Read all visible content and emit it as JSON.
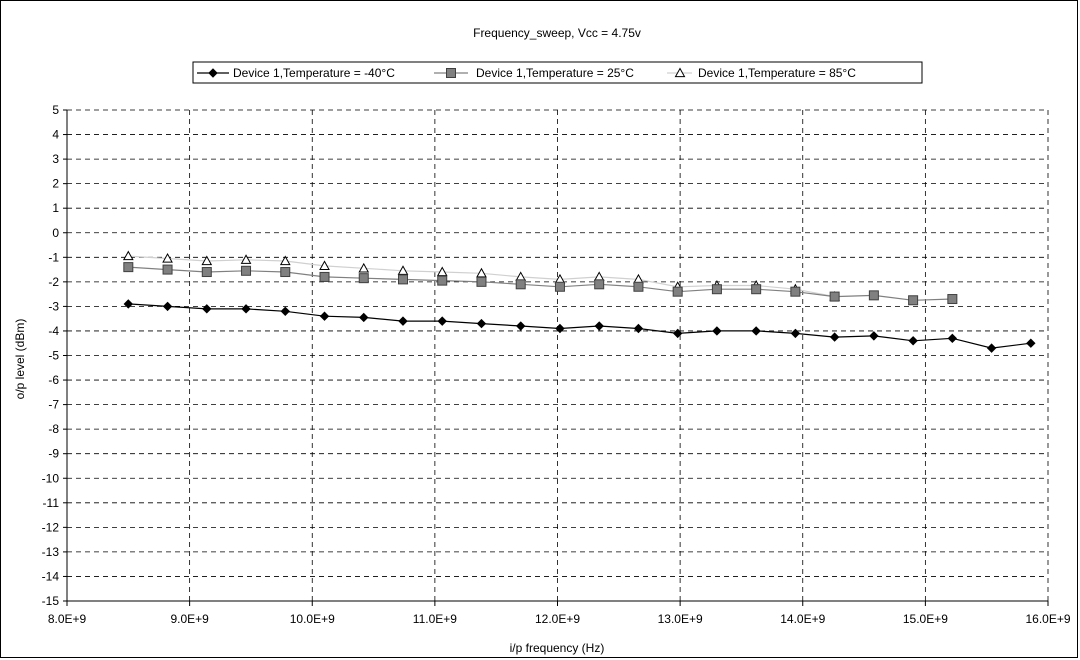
{
  "chart_data": {
    "type": "line",
    "title": "Frequency_sweep, Vcc = 4.75v",
    "xlabel": "i/p frequency (Hz)",
    "ylabel": "o/p level (dBm)",
    "xlim": [
      8000000000.0,
      16000000000.0
    ],
    "ylim": [
      -15,
      5
    ],
    "x_ticks": [
      8000000000.0,
      9000000000.0,
      10000000000.0,
      11000000000.0,
      12000000000.0,
      13000000000.0,
      14000000000.0,
      15000000000.0,
      16000000000.0
    ],
    "x_tick_labels": [
      "8.0E+9",
      "9.0E+9",
      "10.0E+9",
      "11.0E+9",
      "12.0E+9",
      "13.0E+9",
      "14.0E+9",
      "15.0E+9",
      "16.0E+9"
    ],
    "y_ticks": [
      5,
      4,
      3,
      2,
      1,
      0,
      -1,
      -2,
      -3,
      -4,
      -5,
      -6,
      -7,
      -8,
      -9,
      -10,
      -11,
      -12,
      -13,
      -14,
      -15
    ],
    "y_tick_labels": [
      "5",
      "4",
      "3",
      "2",
      "1",
      "0",
      "-1",
      "-2",
      "-3",
      "-4",
      "-5",
      "-6",
      "-7",
      "-8",
      "-9",
      "-10",
      "-11",
      "-12",
      "-13",
      "-14",
      "-15"
    ],
    "grid": true,
    "legend_position": "top-center",
    "series": [
      {
        "name": "Device 1,Temperature = -40°C",
        "marker": "diamond",
        "color": "#000000",
        "x": [
          8500000000.0,
          8820000000.0,
          9140000000.0,
          9460000000.0,
          9780000000.0,
          10100000000.0,
          10420000000.0,
          10740000000.0,
          11060000000.0,
          11380000000.0,
          11700000000.0,
          12020000000.0,
          12340000000.0,
          12660000000.0,
          12980000000.0,
          13300000000.0,
          13620000000.0,
          13940000000.0,
          14260000000.0,
          14580000000.0,
          14900000000.0,
          15220000000.0,
          15540000000.0,
          15860000000.0
        ],
        "y": [
          -2.9,
          -3.0,
          -3.1,
          -3.1,
          -3.2,
          -3.4,
          -3.45,
          -3.6,
          -3.6,
          -3.7,
          -3.8,
          -3.9,
          -3.8,
          -3.9,
          -4.1,
          -4.0,
          -4.0,
          -4.1,
          -4.25,
          -4.2,
          -4.4,
          -4.3,
          -4.7,
          -4.5
        ]
      },
      {
        "name": "Device 1,Temperature = 25°C",
        "marker": "square",
        "color": "#808080",
        "x": [
          8500000000.0,
          8820000000.0,
          9140000000.0,
          9460000000.0,
          9780000000.0,
          10100000000.0,
          10420000000.0,
          10740000000.0,
          11060000000.0,
          11380000000.0,
          11700000000.0,
          12020000000.0,
          12340000000.0,
          12660000000.0,
          12980000000.0,
          13300000000.0,
          13620000000.0,
          13940000000.0,
          14260000000.0,
          14580000000.0,
          14900000000.0,
          15220000000.0
        ],
        "y": [
          -1.4,
          -1.5,
          -1.6,
          -1.55,
          -1.6,
          -1.8,
          -1.85,
          -1.9,
          -1.95,
          -2.0,
          -2.1,
          -2.2,
          -2.1,
          -2.2,
          -2.4,
          -2.3,
          -2.3,
          -2.4,
          -2.6,
          -2.55,
          -2.75,
          -2.7
        ]
      },
      {
        "name": "Device 1,Temperature = 85°C",
        "marker": "triangle",
        "color": "#c0c0c0",
        "x": [
          8500000000.0,
          8820000000.0,
          9140000000.0,
          9460000000.0,
          9780000000.0,
          10100000000.0,
          10420000000.0,
          10740000000.0,
          11060000000.0,
          11380000000.0,
          11700000000.0,
          12020000000.0,
          12340000000.0,
          12660000000.0,
          12980000000.0,
          13300000000.0,
          13620000000.0,
          13940000000.0,
          14260000000.0
        ],
        "y": [
          -0.95,
          -1.05,
          -1.15,
          -1.1,
          -1.15,
          -1.35,
          -1.45,
          -1.55,
          -1.6,
          -1.65,
          -1.8,
          -1.9,
          -1.8,
          -1.9,
          -2.2,
          -2.15,
          -2.15,
          -2.3,
          -2.6
        ]
      }
    ]
  }
}
